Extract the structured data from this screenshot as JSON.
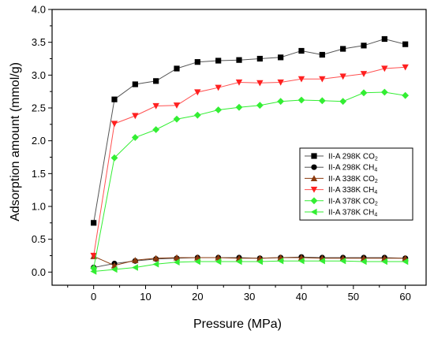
{
  "chart_data": {
    "type": "line",
    "title": "",
    "xlabel": "Pressure (MPa)",
    "ylabel": "Adsorption amount (mmol/g)",
    "xlim": [
      -8,
      64
    ],
    "ylim": [
      -0.2,
      4.0
    ],
    "xticks": [
      0,
      10,
      20,
      30,
      40,
      50,
      60
    ],
    "yticks": [
      0.0,
      0.5,
      1.0,
      1.5,
      2.0,
      2.5,
      3.0,
      3.5,
      4.0
    ],
    "xtick_labels": [
      "0",
      "10",
      "20",
      "30",
      "40",
      "50",
      "60"
    ],
    "ytick_labels": [
      "0.0",
      "0.5",
      "1.0",
      "1.5",
      "2.0",
      "2.5",
      "3.0",
      "3.5",
      "4.0"
    ],
    "grid": false,
    "legend_position": "right",
    "x": [
      0,
      4,
      8,
      12,
      16,
      20,
      24,
      28,
      32,
      36,
      40,
      44,
      48,
      52,
      56,
      60
    ],
    "series": [
      {
        "name": "II-A  298K CO",
        "name_sub": "2",
        "marker": "square",
        "color": "#000000",
        "line_color": "#555555",
        "values": [
          0.75,
          2.63,
          2.86,
          2.91,
          3.1,
          3.2,
          3.22,
          3.23,
          3.25,
          3.27,
          3.37,
          3.31,
          3.4,
          3.45,
          3.55,
          3.47
        ]
      },
      {
        "name": "II-A  298K CH",
        "name_sub": "4",
        "marker": "circle",
        "color": "#000000",
        "line_color": "#555555",
        "values": [
          0.07,
          0.13,
          0.17,
          0.2,
          0.21,
          0.22,
          0.22,
          0.22,
          0.21,
          0.22,
          0.23,
          0.22,
          0.22,
          0.22,
          0.22,
          0.21
        ]
      },
      {
        "name": "II-A  338K CO",
        "name_sub": "2",
        "marker": "triangle-up",
        "color": "#8b3a0e",
        "line_color": "#8b3a0e",
        "values": [
          0.24,
          0.1,
          0.18,
          0.21,
          0.22,
          0.22,
          0.22,
          0.21,
          0.21,
          0.22,
          0.22,
          0.21,
          0.21,
          0.21,
          0.21,
          0.21
        ]
      },
      {
        "name": "II-A  338K CH",
        "name_sub": "4",
        "marker": "triangle-down",
        "color": "#ff2020",
        "line_color": "#ff5050",
        "values": [
          0.25,
          2.26,
          2.38,
          2.53,
          2.54,
          2.74,
          2.81,
          2.89,
          2.88,
          2.89,
          2.94,
          2.94,
          2.98,
          3.02,
          3.1,
          3.12
        ]
      },
      {
        "name": "II-A  378K CO",
        "name_sub": "2",
        "marker": "diamond",
        "color": "#33ee33",
        "line_color": "#33ee33",
        "values": [
          0.06,
          1.74,
          2.05,
          2.17,
          2.33,
          2.39,
          2.47,
          2.51,
          2.54,
          2.6,
          2.62,
          2.61,
          2.6,
          2.73,
          2.74,
          2.69
        ]
      },
      {
        "name": "II-A  378K CH",
        "name_sub": "4",
        "marker": "triangle-left",
        "color": "#33ee33",
        "line_color": "#33ee33",
        "values": [
          0.01,
          0.04,
          0.07,
          0.12,
          0.15,
          0.16,
          0.16,
          0.16,
          0.16,
          0.17,
          0.17,
          0.17,
          0.17,
          0.16,
          0.16,
          0.16
        ]
      }
    ]
  }
}
